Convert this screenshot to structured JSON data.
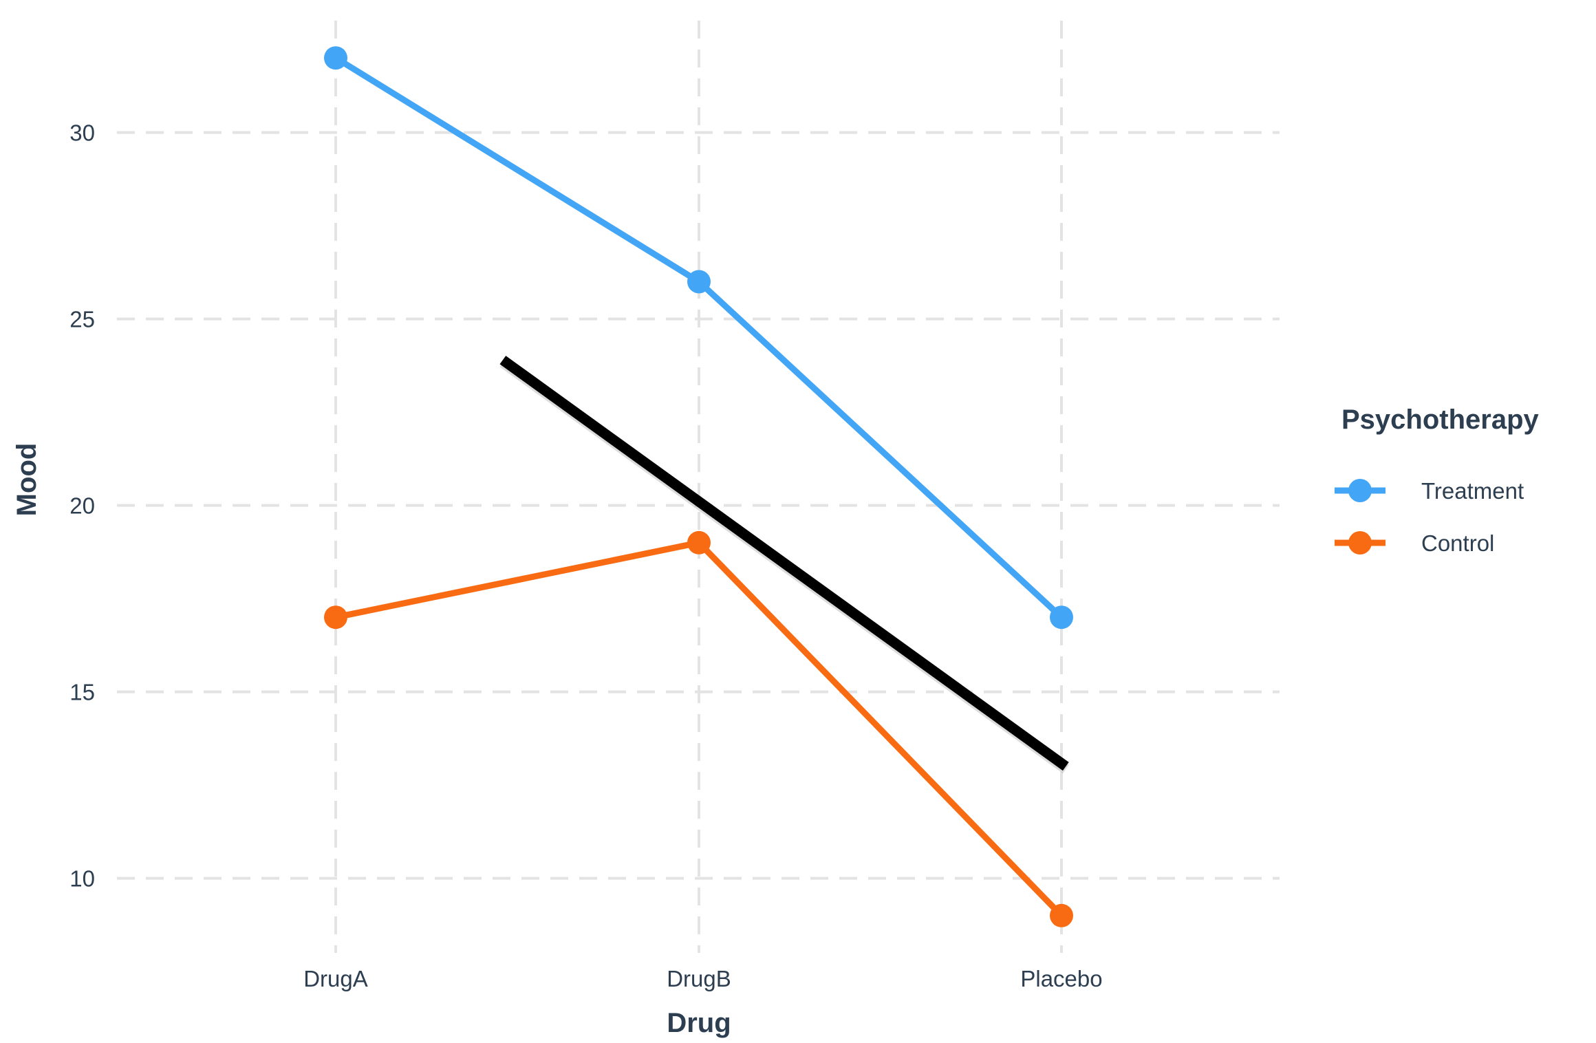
{
  "chart_data": {
    "type": "line",
    "xlabel": "Drug",
    "ylabel": "Mood",
    "categories": [
      "DrugA",
      "DrugB",
      "Placebo"
    ],
    "ylim": [
      8,
      33
    ],
    "yticks": [
      10,
      15,
      20,
      25,
      30
    ],
    "grid": true,
    "legend": {
      "title": "Psychotherapy",
      "position": "right"
    },
    "series": [
      {
        "name": "Treatment",
        "values": [
          32,
          26,
          17
        ],
        "color": "#42a5f5"
      },
      {
        "name": "Control",
        "values": [
          17,
          19,
          9
        ],
        "color": "#f96b12"
      }
    ],
    "trend_line": {
      "color": "#000000",
      "x": [
        1.46,
        3.01
      ],
      "y": [
        23.9,
        13.0
      ]
    }
  }
}
